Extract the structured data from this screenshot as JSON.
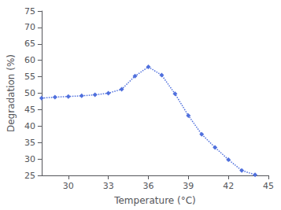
{
  "chart_data": {
    "type": "line",
    "xlabel": "Temperature (°C)",
    "ylabel": "Degradation (%)",
    "x": [
      28,
      29,
      30,
      31,
      32,
      33,
      34,
      35,
      36,
      37,
      38,
      39,
      40,
      41,
      42,
      43,
      44
    ],
    "values": [
      48.5,
      48.8,
      49.0,
      49.2,
      49.5,
      50.0,
      51.2,
      55.2,
      58.0,
      55.5,
      49.8,
      43.2,
      37.5,
      33.5,
      29.8,
      26.5,
      25.2
    ],
    "xlim": [
      28,
      45
    ],
    "ylim": [
      25,
      75
    ],
    "xticks": [
      30,
      33,
      36,
      39,
      42,
      45
    ],
    "yticks": [
      25,
      30,
      35,
      40,
      45,
      50,
      55,
      60,
      65,
      70,
      75
    ],
    "marker": "diamond",
    "line_style": "dotted",
    "grid": false
  }
}
